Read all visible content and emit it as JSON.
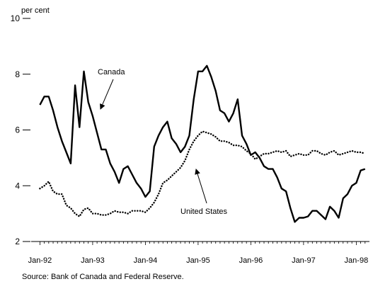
{
  "source": "Source: Bank of Canada and Federal Reserve.",
  "chart_data": {
    "type": "line",
    "title": "",
    "y_unit_label": "per cent",
    "xlabel": "",
    "ylabel": "",
    "xlim": [
      "1991-11",
      "1998-04"
    ],
    "ylim": [
      2,
      10
    ],
    "y_ticks": [
      2,
      4,
      6,
      8,
      10
    ],
    "x_ticks": [
      "Jan-92",
      "Jan-93",
      "Jan-94",
      "Jan-95",
      "Jan-96",
      "Jan-97",
      "Jan-98"
    ],
    "grid": false,
    "annotations": [
      {
        "text": "Canada",
        "series": "Canada"
      },
      {
        "text": "United States",
        "series": "United States"
      }
    ],
    "colors": {
      "Canada": "#000000",
      "United States": "#000000"
    },
    "series": [
      {
        "name": "Canada",
        "style": "solid",
        "points": [
          [
            "1992-01",
            6.9
          ],
          [
            "1992-02",
            7.2
          ],
          [
            "1992-03",
            7.2
          ],
          [
            "1992-04",
            6.7
          ],
          [
            "1992-05",
            6.1
          ],
          [
            "1992-06",
            5.6
          ],
          [
            "1992-07",
            5.2
          ],
          [
            "1992-08",
            4.8
          ],
          [
            "1992-09",
            7.6
          ],
          [
            "1992-10",
            6.1
          ],
          [
            "1992-11",
            8.1
          ],
          [
            "1992-12",
            7.0
          ],
          [
            "1993-01",
            6.5
          ],
          [
            "1993-02",
            5.9
          ],
          [
            "1993-03",
            5.3
          ],
          [
            "1993-04",
            5.3
          ],
          [
            "1993-05",
            4.8
          ],
          [
            "1993-06",
            4.5
          ],
          [
            "1993-07",
            4.1
          ],
          [
            "1993-08",
            4.6
          ],
          [
            "1993-09",
            4.7
          ],
          [
            "1993-10",
            4.4
          ],
          [
            "1993-11",
            4.1
          ],
          [
            "1993-12",
            3.9
          ],
          [
            "1994-01",
            3.6
          ],
          [
            "1994-02",
            3.8
          ],
          [
            "1994-03",
            5.4
          ],
          [
            "1994-04",
            5.8
          ],
          [
            "1994-05",
            6.1
          ],
          [
            "1994-06",
            6.3
          ],
          [
            "1994-07",
            5.7
          ],
          [
            "1994-08",
            5.5
          ],
          [
            "1994-09",
            5.2
          ],
          [
            "1994-10",
            5.4
          ],
          [
            "1994-11",
            5.8
          ],
          [
            "1994-12",
            7.1
          ],
          [
            "1995-01",
            8.1
          ],
          [
            "1995-02",
            8.1
          ],
          [
            "1995-03",
            8.3
          ],
          [
            "1995-04",
            7.9
          ],
          [
            "1995-05",
            7.4
          ],
          [
            "1995-06",
            6.7
          ],
          [
            "1995-07",
            6.6
          ],
          [
            "1995-08",
            6.3
          ],
          [
            "1995-09",
            6.6
          ],
          [
            "1995-10",
            7.1
          ],
          [
            "1995-11",
            5.8
          ],
          [
            "1995-12",
            5.5
          ],
          [
            "1996-01",
            5.1
          ],
          [
            "1996-02",
            5.2
          ],
          [
            "1996-03",
            5.0
          ],
          [
            "1996-04",
            4.7
          ],
          [
            "1996-05",
            4.6
          ],
          [
            "1996-06",
            4.6
          ],
          [
            "1996-07",
            4.3
          ],
          [
            "1996-08",
            3.9
          ],
          [
            "1996-09",
            3.8
          ],
          [
            "1996-10",
            3.2
          ],
          [
            "1996-11",
            2.7
          ],
          [
            "1996-12",
            2.85
          ],
          [
            "1997-01",
            2.85
          ],
          [
            "1997-02",
            2.9
          ],
          [
            "1997-03",
            3.1
          ],
          [
            "1997-04",
            3.1
          ],
          [
            "1997-05",
            2.95
          ],
          [
            "1997-06",
            2.8
          ],
          [
            "1997-07",
            3.25
          ],
          [
            "1997-08",
            3.1
          ],
          [
            "1997-09",
            2.85
          ],
          [
            "1997-10",
            3.55
          ],
          [
            "1997-11",
            3.7
          ],
          [
            "1997-12",
            4.0
          ],
          [
            "1998-01",
            4.1
          ],
          [
            "1998-02",
            4.55
          ],
          [
            "1998-03",
            4.6
          ]
        ]
      },
      {
        "name": "United States",
        "style": "dotted",
        "points": [
          [
            "1992-01",
            3.9
          ],
          [
            "1992-02",
            4.0
          ],
          [
            "1992-03",
            4.15
          ],
          [
            "1992-04",
            3.8
          ],
          [
            "1992-05",
            3.7
          ],
          [
            "1992-06",
            3.7
          ],
          [
            "1992-07",
            3.3
          ],
          [
            "1992-08",
            3.2
          ],
          [
            "1992-09",
            3.0
          ],
          [
            "1992-10",
            2.9
          ],
          [
            "1992-11",
            3.15
          ],
          [
            "1992-12",
            3.2
          ],
          [
            "1993-01",
            3.0
          ],
          [
            "1993-02",
            3.0
          ],
          [
            "1993-03",
            2.95
          ],
          [
            "1993-04",
            2.95
          ],
          [
            "1993-05",
            3.0
          ],
          [
            "1993-06",
            3.1
          ],
          [
            "1993-07",
            3.05
          ],
          [
            "1993-08",
            3.05
          ],
          [
            "1993-09",
            3.0
          ],
          [
            "1993-10",
            3.1
          ],
          [
            "1993-11",
            3.1
          ],
          [
            "1993-12",
            3.1
          ],
          [
            "1994-01",
            3.05
          ],
          [
            "1994-02",
            3.2
          ],
          [
            "1994-03",
            3.4
          ],
          [
            "1994-04",
            3.7
          ],
          [
            "1994-05",
            4.1
          ],
          [
            "1994-06",
            4.2
          ],
          [
            "1994-07",
            4.35
          ],
          [
            "1994-08",
            4.5
          ],
          [
            "1994-09",
            4.65
          ],
          [
            "1994-10",
            4.9
          ],
          [
            "1994-11",
            5.3
          ],
          [
            "1994-12",
            5.6
          ],
          [
            "1995-01",
            5.8
          ],
          [
            "1995-02",
            5.95
          ],
          [
            "1995-03",
            5.9
          ],
          [
            "1995-04",
            5.85
          ],
          [
            "1995-05",
            5.75
          ],
          [
            "1995-06",
            5.6
          ],
          [
            "1995-07",
            5.6
          ],
          [
            "1995-08",
            5.55
          ],
          [
            "1995-09",
            5.45
          ],
          [
            "1995-10",
            5.45
          ],
          [
            "1995-11",
            5.4
          ],
          [
            "1995-12",
            5.25
          ],
          [
            "1996-01",
            5.15
          ],
          [
            "1996-02",
            4.95
          ],
          [
            "1996-03",
            5.05
          ],
          [
            "1996-04",
            5.15
          ],
          [
            "1996-05",
            5.15
          ],
          [
            "1996-06",
            5.2
          ],
          [
            "1996-07",
            5.25
          ],
          [
            "1996-08",
            5.2
          ],
          [
            "1996-09",
            5.25
          ],
          [
            "1996-10",
            5.05
          ],
          [
            "1996-11",
            5.1
          ],
          [
            "1996-12",
            5.15
          ],
          [
            "1997-01",
            5.1
          ],
          [
            "1997-02",
            5.1
          ],
          [
            "1997-03",
            5.25
          ],
          [
            "1997-04",
            5.25
          ],
          [
            "1997-05",
            5.15
          ],
          [
            "1997-06",
            5.1
          ],
          [
            "1997-07",
            5.2
          ],
          [
            "1997-08",
            5.25
          ],
          [
            "1997-09",
            5.1
          ],
          [
            "1997-10",
            5.15
          ],
          [
            "1997-11",
            5.2
          ],
          [
            "1997-12",
            5.25
          ],
          [
            "1998-01",
            5.2
          ],
          [
            "1998-02",
            5.2
          ],
          [
            "1998-03",
            5.15
          ]
        ]
      }
    ]
  }
}
